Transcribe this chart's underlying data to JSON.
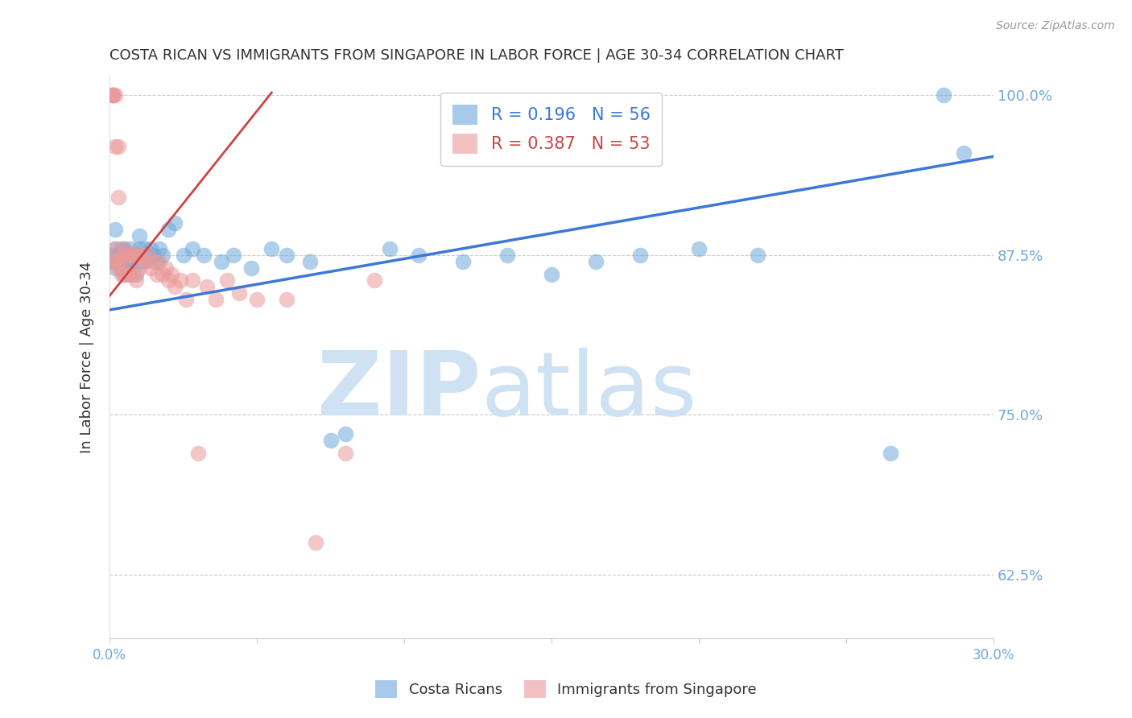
{
  "title": "COSTA RICAN VS IMMIGRANTS FROM SINGAPORE IN LABOR FORCE | AGE 30-34 CORRELATION CHART",
  "source": "Source: ZipAtlas.com",
  "ylabel": "In Labor Force | Age 30-34",
  "xlim": [
    0.0,
    0.3
  ],
  "ylim": [
    0.575,
    1.015
  ],
  "yticks": [
    0.625,
    0.75,
    0.875,
    1.0
  ],
  "yticklabels": [
    "62.5%",
    "75.0%",
    "87.5%",
    "100.0%"
  ],
  "xtick_positions": [
    0.0,
    0.05,
    0.1,
    0.15,
    0.2,
    0.25,
    0.3
  ],
  "blue_R": 0.196,
  "blue_N": 56,
  "pink_R": 0.387,
  "pink_N": 53,
  "blue_color": "#6fa8dc",
  "pink_color": "#ea9999",
  "blue_line_color": "#3c78d8",
  "pink_line_color": "#cc4444",
  "grid_color": "#cccccc",
  "axis_color": "#6fa8dc",
  "title_color": "#333333",
  "source_color": "#999999",
  "watermark_zip_color": "#cfe2f3",
  "watermark_atlas_color": "#cfe2f3",
  "legend_label_blue": "Costa Ricans",
  "legend_label_pink": "Immigrants from Singapore",
  "blue_scatter_x": [
    0.001,
    0.001,
    0.002,
    0.002,
    0.002,
    0.003,
    0.003,
    0.004,
    0.004,
    0.005,
    0.005,
    0.005,
    0.006,
    0.006,
    0.007,
    0.007,
    0.008,
    0.008,
    0.009,
    0.009,
    0.01,
    0.01,
    0.011,
    0.012,
    0.012,
    0.013,
    0.014,
    0.015,
    0.016,
    0.017,
    0.018,
    0.02,
    0.022,
    0.025,
    0.028,
    0.032,
    0.038,
    0.042,
    0.048,
    0.055,
    0.06,
    0.068,
    0.075,
    0.08,
    0.095,
    0.105,
    0.12,
    0.135,
    0.15,
    0.165,
    0.18,
    0.2,
    0.22,
    0.265,
    0.283,
    0.29
  ],
  "blue_scatter_y": [
    0.875,
    0.87,
    0.88,
    0.865,
    0.895,
    0.875,
    0.87,
    0.88,
    0.865,
    0.88,
    0.875,
    0.86,
    0.875,
    0.87,
    0.88,
    0.87,
    0.875,
    0.87,
    0.875,
    0.86,
    0.89,
    0.88,
    0.87,
    0.88,
    0.87,
    0.875,
    0.88,
    0.875,
    0.87,
    0.88,
    0.875,
    0.895,
    0.9,
    0.875,
    0.88,
    0.875,
    0.87,
    0.875,
    0.865,
    0.88,
    0.875,
    0.87,
    0.73,
    0.735,
    0.88,
    0.875,
    0.87,
    0.875,
    0.86,
    0.87,
    0.875,
    0.88,
    0.875,
    0.72,
    1.0,
    0.955
  ],
  "pink_scatter_x": [
    0.001,
    0.001,
    0.001,
    0.001,
    0.001,
    0.002,
    0.002,
    0.002,
    0.002,
    0.003,
    0.003,
    0.003,
    0.003,
    0.004,
    0.004,
    0.005,
    0.005,
    0.005,
    0.006,
    0.006,
    0.007,
    0.007,
    0.008,
    0.008,
    0.009,
    0.009,
    0.01,
    0.01,
    0.011,
    0.012,
    0.013,
    0.014,
    0.015,
    0.016,
    0.017,
    0.018,
    0.019,
    0.02,
    0.021,
    0.022,
    0.024,
    0.026,
    0.028,
    0.03,
    0.033,
    0.036,
    0.04,
    0.044,
    0.05,
    0.06,
    0.07,
    0.08,
    0.09
  ],
  "pink_scatter_y": [
    1.0,
    1.0,
    1.0,
    1.0,
    0.87,
    1.0,
    0.96,
    0.87,
    0.88,
    0.96,
    0.92,
    0.87,
    0.865,
    0.875,
    0.86,
    0.88,
    0.87,
    0.86,
    0.875,
    0.86,
    0.875,
    0.86,
    0.875,
    0.86,
    0.875,
    0.855,
    0.875,
    0.865,
    0.875,
    0.87,
    0.875,
    0.865,
    0.87,
    0.86,
    0.87,
    0.86,
    0.865,
    0.855,
    0.86,
    0.85,
    0.855,
    0.84,
    0.855,
    0.72,
    0.85,
    0.84,
    0.855,
    0.845,
    0.84,
    0.84,
    0.65,
    0.72,
    0.855
  ],
  "blue_trend_x": [
    0.0,
    0.3
  ],
  "blue_trend_y": [
    0.832,
    0.952
  ],
  "pink_trend_x": [
    0.0,
    0.055
  ],
  "pink_trend_y": [
    0.843,
    1.002
  ]
}
